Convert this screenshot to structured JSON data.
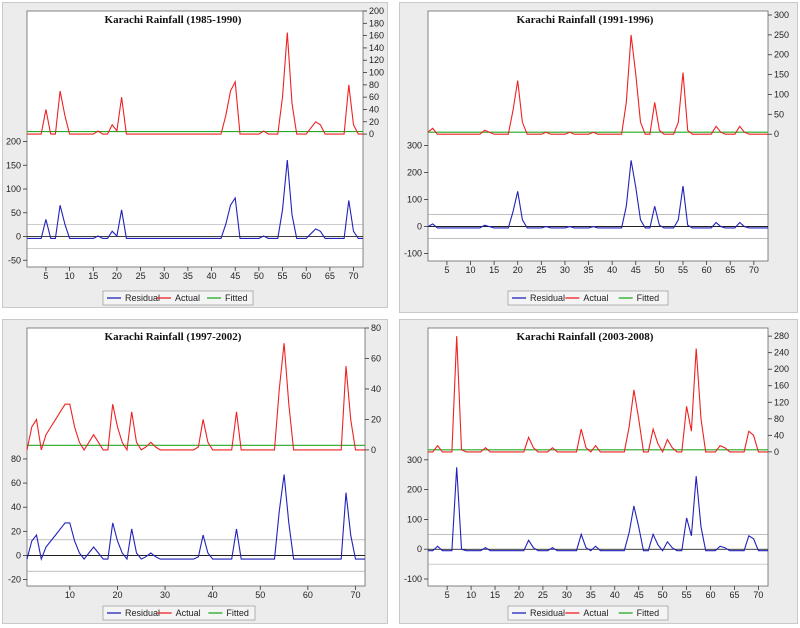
{
  "legend_labels": [
    "Residual",
    "Actual",
    "Fitted"
  ],
  "chart_data": [
    {
      "type": "line",
      "title": "Karachi Rainfall (1985-1990)",
      "colors": {
        "Residual": "#2222bb",
        "Actual": "#ee2222",
        "Fitted": "#22aa22"
      },
      "x_range": [
        1,
        72
      ],
      "x_ticks": [
        5,
        10,
        15,
        20,
        25,
        30,
        35,
        40,
        45,
        50,
        55,
        60,
        65,
        70
      ],
      "right_axis": {
        "ticks": [
          0,
          20,
          40,
          60,
          80,
          100,
          120,
          140,
          160,
          180,
          200
        ],
        "range": [
          -8,
          200
        ]
      },
      "left_axis": {
        "ticks": [
          -50,
          0,
          50,
          100,
          150,
          200
        ],
        "range": [
          -60,
          260
        ]
      },
      "residual_band": 25,
      "legend_position": "bottom",
      "series": [
        {
          "name": "Actual",
          "values": [
            0,
            0,
            0,
            0,
            40,
            0,
            0,
            70,
            30,
            0,
            0,
            0,
            0,
            0,
            0,
            5,
            0,
            0,
            15,
            5,
            60,
            0,
            0,
            0,
            0,
            0,
            0,
            0,
            0,
            0,
            0,
            0,
            0,
            0,
            0,
            0,
            0,
            0,
            0,
            0,
            0,
            0,
            30,
            70,
            85,
            0,
            0,
            0,
            0,
            0,
            5,
            0,
            0,
            0,
            60,
            165,
            50,
            0,
            0,
            0,
            10,
            20,
            15,
            0,
            0,
            0,
            0,
            0,
            80,
            15,
            0,
            0
          ]
        },
        {
          "name": "Fitted",
          "values": [
            4,
            4,
            4,
            4,
            4,
            4,
            4,
            4,
            4,
            4,
            4,
            4,
            4,
            4,
            4,
            4,
            4,
            4,
            4,
            4,
            4,
            4,
            4,
            4,
            4,
            4,
            4,
            4,
            4,
            4,
            4,
            4,
            4,
            4,
            4,
            4,
            4,
            4,
            4,
            4,
            4,
            4,
            4,
            4,
            4,
            4,
            4,
            4,
            4,
            4,
            4,
            4,
            4,
            4,
            4,
            4,
            4,
            4,
            4,
            4,
            4,
            4,
            4,
            4,
            4,
            4,
            4,
            4,
            4,
            4,
            4,
            4
          ]
        },
        {
          "name": "Residual",
          "values": [
            -4,
            -4,
            -4,
            -4,
            36,
            -4,
            -4,
            66,
            26,
            -4,
            -4,
            -4,
            -4,
            -4,
            -4,
            1,
            -4,
            -4,
            11,
            1,
            56,
            -4,
            -4,
            -4,
            -4,
            -4,
            -4,
            -4,
            -4,
            -4,
            -4,
            -4,
            -4,
            -4,
            -4,
            -4,
            -4,
            -4,
            -4,
            -4,
            -4,
            -4,
            26,
            66,
            81,
            -4,
            -4,
            -4,
            -4,
            -4,
            1,
            -4,
            -4,
            -4,
            56,
            161,
            46,
            -4,
            -4,
            -4,
            6,
            16,
            11,
            -4,
            -4,
            -4,
            -4,
            -4,
            76,
            11,
            -4,
            -4
          ]
        }
      ]
    },
    {
      "type": "line",
      "title": "Karachi Rainfall (1991-1996)",
      "colors": {
        "Residual": "#2222bb",
        "Actual": "#ee2222",
        "Fitted": "#22aa22"
      },
      "x_range": [
        1,
        73
      ],
      "x_ticks": [
        5,
        10,
        15,
        20,
        25,
        30,
        35,
        40,
        45,
        50,
        55,
        60,
        65,
        70
      ],
      "right_axis": {
        "ticks": [
          0,
          50,
          100,
          150,
          200,
          250,
          300
        ],
        "range": [
          -12,
          300
        ]
      },
      "left_axis": {
        "ticks": [
          -100,
          0,
          100,
          200,
          300
        ],
        "range": [
          -120,
          420
        ]
      },
      "residual_band": 45,
      "legend_position": "bottom",
      "series": [
        {
          "name": "Actual",
          "values": [
            5,
            15,
            0,
            0,
            0,
            0,
            0,
            0,
            0,
            0,
            0,
            0,
            10,
            5,
            0,
            0,
            0,
            0,
            60,
            135,
            30,
            0,
            0,
            0,
            0,
            5,
            0,
            0,
            0,
            0,
            5,
            0,
            0,
            0,
            0,
            5,
            0,
            0,
            0,
            0,
            0,
            0,
            80,
            250,
            150,
            30,
            0,
            0,
            80,
            10,
            0,
            0,
            0,
            30,
            155,
            10,
            0,
            0,
            0,
            0,
            0,
            20,
            5,
            0,
            0,
            0,
            20,
            5,
            0,
            0,
            0,
            0,
            0
          ]
        },
        {
          "name": "Fitted",
          "values": [
            5,
            5,
            5,
            5,
            5,
            5,
            5,
            5,
            5,
            5,
            5,
            5,
            5,
            5,
            5,
            5,
            5,
            5,
            5,
            5,
            5,
            5,
            5,
            5,
            5,
            5,
            5,
            5,
            5,
            5,
            5,
            5,
            5,
            5,
            5,
            5,
            5,
            5,
            5,
            5,
            5,
            5,
            5,
            5,
            5,
            5,
            5,
            5,
            5,
            5,
            5,
            5,
            5,
            5,
            5,
            5,
            5,
            5,
            5,
            5,
            5,
            5,
            5,
            5,
            5,
            5,
            5,
            5,
            5,
            5,
            5,
            5,
            5
          ]
        },
        {
          "name": "Residual",
          "values": [
            0,
            10,
            -5,
            -5,
            -5,
            -5,
            -5,
            -5,
            -5,
            -5,
            -5,
            -5,
            5,
            0,
            -5,
            -5,
            -5,
            -5,
            55,
            130,
            25,
            -5,
            -5,
            -5,
            -5,
            0,
            -5,
            -5,
            -5,
            -5,
            0,
            -5,
            -5,
            -5,
            -5,
            0,
            -5,
            -5,
            -5,
            -5,
            -5,
            -5,
            75,
            245,
            145,
            25,
            -5,
            -5,
            75,
            5,
            -5,
            -5,
            -5,
            25,
            150,
            5,
            -5,
            -5,
            -5,
            -5,
            -5,
            15,
            0,
            -5,
            -5,
            -5,
            15,
            0,
            -5,
            -5,
            -5,
            -5,
            -5
          ]
        }
      ]
    },
    {
      "type": "line",
      "title": "Karachi Rainfall (1997-2002)",
      "colors": {
        "Residual": "#2222bb",
        "Actual": "#ee2222",
        "Fitted": "#22aa22"
      },
      "x_range": [
        1,
        72
      ],
      "x_ticks": [
        10,
        20,
        30,
        40,
        50,
        60,
        70
      ],
      "right_axis": {
        "ticks": [
          0,
          20,
          40,
          60,
          80
        ],
        "range": [
          -4,
          80
        ]
      },
      "left_axis": {
        "ticks": [
          -20,
          0,
          20,
          40,
          60,
          80
        ],
        "range": [
          -22,
          104
        ]
      },
      "residual_band": 13,
      "legend_position": "bottom",
      "series": [
        {
          "name": "Actual",
          "values": [
            0,
            15,
            20,
            0,
            10,
            15,
            20,
            25,
            30,
            30,
            15,
            5,
            0,
            5,
            10,
            5,
            0,
            0,
            30,
            15,
            5,
            0,
            25,
            5,
            0,
            2,
            5,
            2,
            0,
            0,
            0,
            0,
            0,
            0,
            0,
            0,
            2,
            20,
            5,
            0,
            0,
            0,
            0,
            0,
            25,
            0,
            0,
            0,
            0,
            0,
            0,
            0,
            0,
            40,
            70,
            30,
            0,
            0,
            0,
            0,
            0,
            0,
            0,
            0,
            0,
            0,
            0,
            55,
            20,
            0,
            0,
            0
          ]
        },
        {
          "name": "Fitted",
          "values": [
            3,
            3,
            3,
            3,
            3,
            3,
            3,
            3,
            3,
            3,
            3,
            3,
            3,
            3,
            3,
            3,
            3,
            3,
            3,
            3,
            3,
            3,
            3,
            3,
            3,
            3,
            3,
            3,
            3,
            3,
            3,
            3,
            3,
            3,
            3,
            3,
            3,
            3,
            3,
            3,
            3,
            3,
            3,
            3,
            3,
            3,
            3,
            3,
            3,
            3,
            3,
            3,
            3,
            3,
            3,
            3,
            3,
            3,
            3,
            3,
            3,
            3,
            3,
            3,
            3,
            3,
            3,
            3,
            3,
            3,
            3,
            3
          ]
        },
        {
          "name": "Residual",
          "values": [
            -3,
            12,
            17,
            -3,
            7,
            12,
            17,
            22,
            27,
            27,
            12,
            2,
            -3,
            2,
            7,
            2,
            -3,
            -3,
            27,
            12,
            2,
            -3,
            22,
            2,
            -3,
            -1,
            2,
            -1,
            -3,
            -3,
            -3,
            -3,
            -3,
            -3,
            -3,
            -3,
            -1,
            17,
            2,
            -3,
            -3,
            -3,
            -3,
            -3,
            22,
            -3,
            -3,
            -3,
            -3,
            -3,
            -3,
            -3,
            -3,
            37,
            67,
            27,
            -3,
            -3,
            -3,
            -3,
            -3,
            -3,
            -3,
            -3,
            -3,
            -3,
            -3,
            52,
            17,
            -3,
            -3,
            -3
          ]
        }
      ]
    },
    {
      "type": "line",
      "title": "Karachi Rainfall (2003-2008)",
      "colors": {
        "Residual": "#2222bb",
        "Actual": "#ee2222",
        "Fitted": "#22aa22"
      },
      "x_range": [
        1,
        72
      ],
      "x_ticks": [
        5,
        10,
        15,
        20,
        25,
        30,
        35,
        40,
        45,
        50,
        55,
        60,
        65,
        70
      ],
      "right_axis": {
        "ticks": [
          0,
          40,
          80,
          120,
          160,
          200,
          240,
          280
        ],
        "range": [
          -10,
          290
        ]
      },
      "left_axis": {
        "ticks": [
          -100,
          0,
          100,
          200,
          300
        ],
        "range": [
          -110,
          400
        ]
      },
      "residual_band": 50,
      "legend_position": "bottom",
      "series": [
        {
          "name": "Actual",
          "values": [
            0,
            0,
            15,
            0,
            0,
            0,
            280,
            5,
            0,
            0,
            0,
            0,
            10,
            0,
            0,
            0,
            0,
            0,
            0,
            0,
            0,
            35,
            10,
            0,
            0,
            0,
            10,
            0,
            0,
            0,
            0,
            0,
            55,
            10,
            0,
            15,
            0,
            0,
            0,
            0,
            0,
            0,
            60,
            150,
            80,
            0,
            0,
            55,
            20,
            0,
            30,
            10,
            0,
            0,
            110,
            50,
            250,
            80,
            0,
            0,
            0,
            15,
            10,
            0,
            0,
            0,
            0,
            50,
            40,
            0,
            0,
            0
          ]
        },
        {
          "name": "Fitted",
          "values": [
            5,
            5,
            5,
            5,
            5,
            5,
            5,
            5,
            5,
            5,
            5,
            5,
            5,
            5,
            5,
            5,
            5,
            5,
            5,
            5,
            5,
            5,
            5,
            5,
            5,
            5,
            5,
            5,
            5,
            5,
            5,
            5,
            5,
            5,
            5,
            5,
            5,
            5,
            5,
            5,
            5,
            5,
            5,
            5,
            5,
            5,
            5,
            5,
            5,
            5,
            5,
            5,
            5,
            5,
            5,
            5,
            5,
            5,
            5,
            5,
            5,
            5,
            5,
            5,
            5,
            5,
            5,
            5,
            5,
            5,
            5,
            5
          ]
        },
        {
          "name": "Residual",
          "values": [
            -5,
            -5,
            10,
            -5,
            -5,
            -5,
            275,
            0,
            -5,
            -5,
            -5,
            -5,
            5,
            -5,
            -5,
            -5,
            -5,
            -5,
            -5,
            -5,
            -5,
            30,
            5,
            -5,
            -5,
            -5,
            5,
            -5,
            -5,
            -5,
            -5,
            -5,
            50,
            5,
            -5,
            10,
            -5,
            -5,
            -5,
            -5,
            -5,
            -5,
            55,
            145,
            75,
            -5,
            -5,
            50,
            15,
            -5,
            25,
            5,
            -5,
            -5,
            105,
            45,
            245,
            75,
            -5,
            -5,
            -5,
            10,
            5,
            -5,
            -5,
            -5,
            -5,
            45,
            35,
            -5,
            -5,
            -5
          ]
        }
      ]
    }
  ]
}
